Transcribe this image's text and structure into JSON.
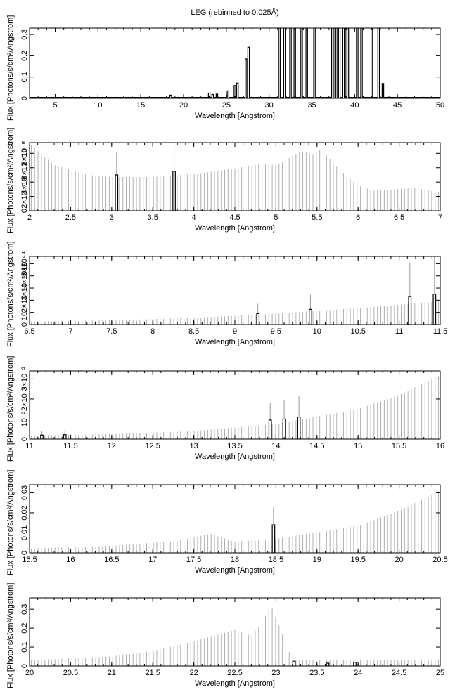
{
  "figure": {
    "title": "LEG (rebinned to 0.025Å)"
  },
  "chart_data": [
    {
      "type": "bar",
      "title": "LEG (rebinned to 0.025Å)",
      "xlabel": "Wavelength [Angstrom]",
      "ylabel": "Flux [Photons/s/cm²/Angstrom]",
      "xlim": [
        2,
        50
      ],
      "ylim": [
        0,
        0.33
      ],
      "grid": false,
      "xticks": [
        5,
        10,
        15,
        20,
        25,
        30,
        35,
        40,
        45,
        50
      ],
      "xtick_labels": [
        "5",
        "10",
        "15",
        "20",
        "25",
        "30",
        "35",
        "40",
        "45",
        "50"
      ],
      "yticks": [
        0,
        0.1,
        0.2,
        0.3
      ],
      "ytick_labels": [
        "0",
        "0.1",
        "0.2",
        "0.3"
      ],
      "baseline": 0.004,
      "bars": [
        {
          "x": 18.5,
          "y": 0.015
        },
        {
          "x": 23.0,
          "y": 0.025
        },
        {
          "x": 23.4,
          "y": 0.018
        },
        {
          "x": 23.9,
          "y": 0.02
        },
        {
          "x": 25.2,
          "y": 0.035
        },
        {
          "x": 26.0,
          "y": 0.06
        },
        {
          "x": 26.3,
          "y": 0.072
        },
        {
          "x": 27.3,
          "y": 0.185
        },
        {
          "x": 27.6,
          "y": 0.24
        },
        {
          "x": 31.2,
          "y": 0.33
        },
        {
          "x": 31.8,
          "y": 0.33
        },
        {
          "x": 32.5,
          "y": 0.33
        },
        {
          "x": 33.0,
          "y": 0.33
        },
        {
          "x": 33.8,
          "y": 0.33
        },
        {
          "x": 34.4,
          "y": 0.33
        },
        {
          "x": 35.3,
          "y": 0.33
        },
        {
          "x": 37.4,
          "y": 0.33
        },
        {
          "x": 37.6,
          "y": 0.33
        },
        {
          "x": 37.9,
          "y": 0.33
        },
        {
          "x": 38.2,
          "y": 0.33
        },
        {
          "x": 38.7,
          "y": 0.33
        },
        {
          "x": 39.0,
          "y": 0.33
        },
        {
          "x": 39.2,
          "y": 0.33
        },
        {
          "x": 40.3,
          "y": 0.33
        },
        {
          "x": 40.8,
          "y": 0.33
        },
        {
          "x": 42.0,
          "y": 0.33
        },
        {
          "x": 42.8,
          "y": 0.33
        },
        {
          "x": 43.3,
          "y": 0.07
        }
      ]
    },
    {
      "type": "bar",
      "xlabel": "Wavelength [Angstrom]",
      "ylabel": "Flux [Photons/s/cm²/Angstrom]",
      "xlim": [
        2,
        7
      ],
      "ylim": [
        0,
        9.5e-07
      ],
      "grid": false,
      "xticks": [
        2,
        2.5,
        3,
        3.5,
        4,
        4.5,
        5,
        5.5,
        6,
        6.5,
        7
      ],
      "xtick_labels": [
        "2",
        "2.5",
        "3",
        "3.5",
        "4",
        "4.5",
        "5",
        "5.5",
        "6",
        "6.5",
        "7"
      ],
      "yticks": [
        0,
        2e-07,
        4e-07,
        6e-07,
        8e-07
      ],
      "ytick_labels": [
        "0",
        "2×10⁻⁷",
        "4×10⁻⁷",
        "6×10⁻⁷",
        "8×10⁻⁷"
      ],
      "y_exponent_label": "×10⁻⁶",
      "continuum": [
        {
          "x": 2.0,
          "y": 9.3e-07
        },
        {
          "x": 2.3,
          "y": 6.4e-07
        },
        {
          "x": 2.7,
          "y": 5e-07
        },
        {
          "x": 3.0,
          "y": 4.7e-07
        },
        {
          "x": 3.5,
          "y": 4.7e-07
        },
        {
          "x": 4.0,
          "y": 5.1e-07
        },
        {
          "x": 4.5,
          "y": 5.9e-07
        },
        {
          "x": 4.85,
          "y": 6.6e-07
        },
        {
          "x": 5.0,
          "y": 6.3e-07
        },
        {
          "x": 5.3,
          "y": 8.3e-07
        },
        {
          "x": 5.45,
          "y": 7.9e-07
        },
        {
          "x": 5.55,
          "y": 8.6e-07
        },
        {
          "x": 5.75,
          "y": 6e-07
        },
        {
          "x": 6.0,
          "y": 3.5e-07
        },
        {
          "x": 6.2,
          "y": 2.8e-07
        },
        {
          "x": 6.7,
          "y": 3.2e-07
        },
        {
          "x": 7.0,
          "y": 2.5e-07
        }
      ],
      "bars": [
        {
          "x": 3.06,
          "y": 5e-07,
          "err": 3.2e-07
        },
        {
          "x": 3.76,
          "y": 5.5e-07,
          "err": 4.1e-07
        }
      ]
    },
    {
      "type": "bar",
      "xlabel": "Wavelength [Angstrom]",
      "ylabel": "Flux [Photons/s/cm²/Angstrom]",
      "xlim": [
        6.5,
        11.5
      ],
      "ylim": [
        0,
        0.00056
      ],
      "grid": false,
      "xticks": [
        6.5,
        7,
        7.5,
        8,
        8.5,
        9,
        9.5,
        10,
        10.5,
        11,
        11.5
      ],
      "xtick_labels": [
        "6.5",
        "7",
        "7.5",
        "8",
        "8.5",
        "9",
        "9.5",
        "10",
        "10.5",
        "11",
        "11.5"
      ],
      "yticks": [
        0,
        0.0001,
        0.0002,
        0.0003,
        0.0004,
        0.0005
      ],
      "ytick_labels": [
        "0",
        "10⁻⁴",
        "2×10⁻⁴",
        "3×10⁻⁴",
        "4×10⁻⁴",
        "5×10⁻⁴"
      ],
      "y_exponent_label": "×10⁻⁴",
      "continuum": [
        {
          "x": 6.5,
          "y": 2.5e-05
        },
        {
          "x": 7.5,
          "y": 3.5e-05
        },
        {
          "x": 8.5,
          "y": 5.5e-05
        },
        {
          "x": 9.5,
          "y": 9e-05
        },
        {
          "x": 10.5,
          "y": 0.000135
        },
        {
          "x": 11.5,
          "y": 0.00019
        }
      ],
      "bars": [
        {
          "x": 9.28,
          "y": 9e-05,
          "err": 8e-05
        },
        {
          "x": 9.92,
          "y": 0.000125,
          "err": 0.00012
        },
        {
          "x": 11.13,
          "y": 0.00023,
          "err": 0.00028
        },
        {
          "x": 11.43,
          "y": 0.00025,
          "err": 0.00032
        }
      ]
    },
    {
      "type": "bar",
      "xlabel": "Wavelength [Angstrom]",
      "ylabel": "Flux [Photons/s/cm²/Angstrom]",
      "xlim": [
        11,
        16
      ],
      "ylim": [
        0,
        0.0034
      ],
      "grid": false,
      "xticks": [
        11,
        11.5,
        12,
        12.5,
        13,
        13.5,
        14,
        14.5,
        15,
        15.5,
        16
      ],
      "xtick_labels": [
        "11",
        "11.5",
        "12",
        "12.5",
        "13",
        "13.5",
        "14",
        "14.5",
        "15",
        "15.5",
        "16"
      ],
      "yticks": [
        0,
        0.001,
        0.002,
        0.003
      ],
      "ytick_labels": [
        "0",
        "10⁻³",
        "2×10⁻³",
        "3×10⁻³"
      ],
      "continuum": [
        {
          "x": 11.0,
          "y": 0.00018
        },
        {
          "x": 12.0,
          "y": 0.00025
        },
        {
          "x": 13.0,
          "y": 0.0004
        },
        {
          "x": 14.0,
          "y": 0.00075
        },
        {
          "x": 15.0,
          "y": 0.0015
        },
        {
          "x": 15.5,
          "y": 0.0022
        },
        {
          "x": 16.0,
          "y": 0.0032
        }
      ],
      "bars": [
        {
          "x": 11.15,
          "y": 0.0002,
          "err": 0.00018
        },
        {
          "x": 11.43,
          "y": 0.00022,
          "err": 0.00022
        },
        {
          "x": 13.93,
          "y": 0.00095,
          "err": 0.00085
        },
        {
          "x": 14.1,
          "y": 0.001,
          "err": 0.00095
        },
        {
          "x": 14.28,
          "y": 0.0011,
          "err": 0.00105
        }
      ]
    },
    {
      "type": "bar",
      "xlabel": "Wavelength [Angstrom]",
      "ylabel": "Flux [Photons/s/cm²/Angstrom]",
      "xlim": [
        15.5,
        20.5
      ],
      "ylim": [
        0,
        0.034
      ],
      "grid": false,
      "xticks": [
        15.5,
        16,
        16.5,
        17,
        17.5,
        18,
        18.5,
        19,
        19.5,
        20,
        20.5
      ],
      "xtick_labels": [
        "15.5",
        "16",
        "16.5",
        "17",
        "17.5",
        "18",
        "18.5",
        "19",
        "19.5",
        "20",
        "20.5"
      ],
      "yticks": [
        0,
        0.01,
        0.02,
        0.03
      ],
      "ytick_labels": [
        "0",
        "0.01",
        "0.02",
        "0.03"
      ],
      "continuum": [
        {
          "x": 15.5,
          "y": 0.0022
        },
        {
          "x": 16.5,
          "y": 0.0035
        },
        {
          "x": 17.3,
          "y": 0.006
        },
        {
          "x": 17.7,
          "y": 0.0095
        },
        {
          "x": 18.0,
          "y": 0.0055
        },
        {
          "x": 18.5,
          "y": 0.007
        },
        {
          "x": 19.5,
          "y": 0.0135
        },
        {
          "x": 20.0,
          "y": 0.021
        },
        {
          "x": 20.5,
          "y": 0.031
        }
      ],
      "bars": [
        {
          "x": 18.47,
          "y": 0.014,
          "err": 0.009
        }
      ]
    },
    {
      "type": "bar",
      "xlabel": "Wavelength [Angstrom]",
      "ylabel": "Flux [Photons/s/cm²/Angstrom]",
      "xlim": [
        20,
        25
      ],
      "ylim": [
        0,
        0.36
      ],
      "grid": false,
      "xticks": [
        20,
        20.5,
        21,
        21.5,
        22,
        22.5,
        23,
        23.5,
        24,
        24.5,
        25
      ],
      "xtick_labels": [
        "20",
        "20.5",
        "21",
        "21.5",
        "22",
        "22.5",
        "23",
        "23.5",
        "24",
        "24.5",
        "25"
      ],
      "yticks": [
        0,
        0.1,
        0.2,
        0.3
      ],
      "ytick_labels": [
        "0",
        "0.1",
        "0.2",
        "0.3"
      ],
      "continuum": [
        {
          "x": 20.0,
          "y": 0.03
        },
        {
          "x": 21.0,
          "y": 0.05
        },
        {
          "x": 21.5,
          "y": 0.08
        },
        {
          "x": 22.0,
          "y": 0.13
        },
        {
          "x": 22.5,
          "y": 0.19
        },
        {
          "x": 22.7,
          "y": 0.16
        },
        {
          "x": 22.85,
          "y": 0.24
        },
        {
          "x": 22.93,
          "y": 0.33
        },
        {
          "x": 23.05,
          "y": 0.2
        },
        {
          "x": 23.2,
          "y": 0.03
        },
        {
          "x": 25.0,
          "y": 0.035
        }
      ],
      "bars": [
        {
          "x": 23.22,
          "y": 0.025,
          "err": 0.0
        },
        {
          "x": 23.63,
          "y": 0.015,
          "err": 0.0
        },
        {
          "x": 23.96,
          "y": 0.02,
          "err": 0.0
        }
      ]
    }
  ]
}
